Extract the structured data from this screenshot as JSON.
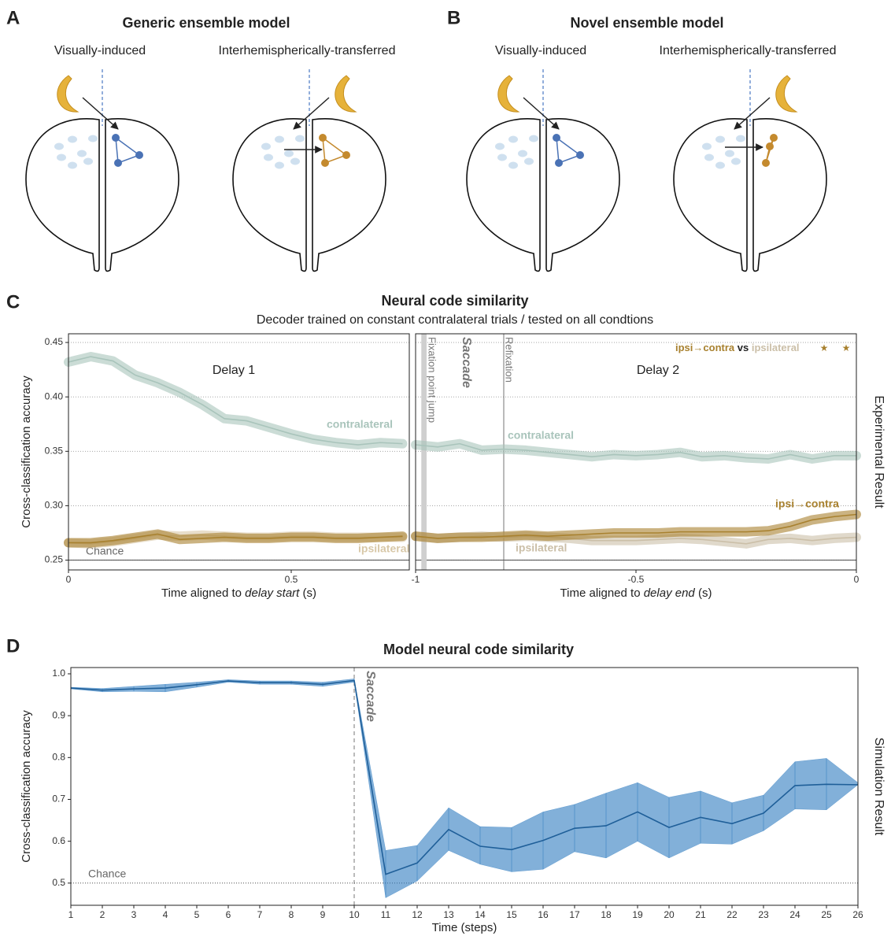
{
  "panels": [
    {
      "letter": "A",
      "title": "Generic ensemble model",
      "left": "Visually-induced",
      "right": "Interhemispherically-transferred"
    },
    {
      "letter": "B",
      "title": "Novel ensemble model",
      "left": "Visually-induced",
      "right": "Interhemispherically-transferred"
    }
  ],
  "chart_data": [
    {
      "type": "line",
      "letter": "C",
      "title": "Neural code similarity",
      "subtitle": "Decoder trained on constant contralateral trials / tested on all condtions",
      "ylabel": "Cross-classification accuracy",
      "side_label": "Experimental Result",
      "annotation": "Delay 1",
      "xlabel": {
        "text": "Time aligned to",
        "italic": "delay start",
        "unit": "(s)"
      },
      "x": [
        0,
        0.05,
        0.1,
        0.15,
        0.2,
        0.25,
        0.3,
        0.35,
        0.4,
        0.45,
        0.5,
        0.55,
        0.6,
        0.65,
        0.7,
        0.75
      ],
      "series": [
        {
          "name": "contralateral",
          "color": "#a9c4bb",
          "values": [
            0.432,
            0.437,
            0.433,
            0.42,
            0.413,
            0.404,
            0.393,
            0.38,
            0.378,
            0.372,
            0.366,
            0.361,
            0.358,
            0.356,
            0.358,
            0.357
          ]
        },
        {
          "name": "ipsilateral",
          "color": "#d8c8a8",
          "values": [
            0.266,
            0.265,
            0.267,
            0.27,
            0.273,
            0.272,
            0.273,
            0.272,
            0.271,
            0.271,
            0.272,
            0.272,
            0.271,
            0.271,
            0.271,
            0.271
          ]
        },
        {
          "name": "ipsi→contra",
          "color": "#a8812f",
          "values": [
            0.266,
            0.266,
            0.268,
            0.271,
            0.274,
            0.269,
            0.27,
            0.271,
            0.27,
            0.27,
            0.271,
            0.271,
            0.27,
            0.27,
            0.271,
            0.272
          ]
        }
      ],
      "chance": 0.25,
      "chance_label": "Chance",
      "xlim": [
        0,
        0.765
      ],
      "xticks": [
        0,
        0.5
      ],
      "ylim": [
        0.241,
        0.458
      ],
      "yticks": [
        0.25,
        {
          "value": 0.3,
          "label": "0.30"
        },
        0.35,
        {
          "value": 0.4,
          "label": "0.40"
        },
        0.45
      ],
      "grid": true
    },
    {
      "type": "line",
      "annotation": "Delay 2",
      "xlabel": {
        "text": "Time aligned to",
        "italic": "delay end",
        "unit": "(s)"
      },
      "x": [
        -1,
        -0.95,
        -0.9,
        -0.85,
        -0.8,
        -0.75,
        -0.7,
        -0.65,
        -0.6,
        -0.55,
        -0.5,
        -0.45,
        -0.4,
        -0.35,
        -0.3,
        -0.25,
        -0.2,
        -0.15,
        -0.1,
        -0.05,
        0
      ],
      "series": [
        {
          "name": "contralateral",
          "color": "#a9c4bb",
          "values": [
            0.356,
            0.354,
            0.357,
            0.351,
            0.352,
            0.351,
            0.349,
            0.347,
            0.345,
            0.347,
            0.346,
            0.347,
            0.349,
            0.345,
            0.346,
            0.344,
            0.343,
            0.347,
            0.343,
            0.346,
            0.346
          ]
        },
        {
          "name": "ipsilateral",
          "color": "#cbbfa8",
          "values": [
            0.272,
            0.27,
            0.271,
            0.272,
            0.271,
            0.272,
            0.271,
            0.27,
            0.268,
            0.268,
            0.268,
            0.269,
            0.27,
            0.269,
            0.267,
            0.265,
            0.269,
            0.27,
            0.268,
            0.27,
            0.271
          ]
        },
        {
          "name": "ipsi→contra",
          "color": "#a8812f",
          "values": [
            0.272,
            0.27,
            0.271,
            0.271,
            0.272,
            0.273,
            0.272,
            0.273,
            0.274,
            0.275,
            0.275,
            0.275,
            0.276,
            0.276,
            0.276,
            0.276,
            0.277,
            0.281,
            0.287,
            0.29,
            0.292
          ]
        }
      ],
      "events": [
        {
          "label": "Fixation point jump",
          "x": [
            -0.987,
            -0.975
          ]
        },
        {
          "label": "Refixation",
          "x": -0.8
        }
      ],
      "saccade_label": "Saccade",
      "significance": {
        "vs": "vs",
        "stars": [
          "★",
          "★"
        ]
      },
      "chance": 0.25,
      "xlim": [
        -1,
        0
      ],
      "xticks": [
        -1,
        -0.5,
        0
      ],
      "ylim": [
        0.241,
        0.458
      ],
      "yticks": [
        0.25,
        0.3,
        0.35,
        0.4,
        0.45
      ],
      "ytick_labels": false,
      "grid": true
    },
    {
      "type": "band",
      "letter": "D",
      "title": "Model neural code similarity",
      "ylabel": "Cross-classification accuracy",
      "side_label": "Simulation Result",
      "xlabel": {
        "text": "Time (steps)"
      },
      "x": [
        1,
        2,
        3,
        4,
        5,
        6,
        7,
        8,
        9,
        10,
        11,
        12,
        13,
        14,
        15,
        16,
        17,
        18,
        19,
        20,
        21,
        22,
        23,
        24,
        25,
        26
      ],
      "series": [
        {
          "color": "#2f7bbf",
          "values": [
            0.966,
            0.961,
            0.964,
            0.966,
            0.974,
            0.983,
            0.979,
            0.979,
            0.975,
            0.984,
            0.521,
            0.548,
            0.628,
            0.588,
            0.58,
            0.602,
            0.631,
            0.637,
            0.67,
            0.633,
            0.657,
            0.642,
            0.667,
            0.733,
            0.736,
            0.735
          ],
          "lower": [
            0.964,
            0.957,
            0.958,
            0.957,
            0.968,
            0.98,
            0.975,
            0.975,
            0.97,
            0.98,
            0.465,
            0.505,
            0.578,
            0.545,
            0.527,
            0.533,
            0.575,
            0.56,
            0.6,
            0.56,
            0.595,
            0.593,
            0.625,
            0.677,
            0.675,
            0.735
          ],
          "upper": [
            0.968,
            0.965,
            0.97,
            0.975,
            0.98,
            0.986,
            0.983,
            0.983,
            0.98,
            0.988,
            0.578,
            0.59,
            0.68,
            0.635,
            0.633,
            0.67,
            0.688,
            0.715,
            0.74,
            0.705,
            0.72,
            0.692,
            0.71,
            0.79,
            0.798,
            0.74
          ]
        }
      ],
      "saccade": {
        "x": 10,
        "label": "Saccade"
      },
      "chance": 0.5,
      "chance_label": "Chance",
      "xlim": [
        1,
        26
      ],
      "xticks": [
        1,
        2,
        3,
        4,
        5,
        6,
        7,
        8,
        9,
        10,
        11,
        12,
        13,
        14,
        15,
        16,
        17,
        18,
        19,
        20,
        21,
        22,
        23,
        24,
        25,
        26
      ],
      "ylim": [
        0.447,
        1.015
      ],
      "yticks": [
        0.5,
        0.6,
        0.7,
        0.8,
        0.9,
        {
          "value": 1.0,
          "label": "1.0"
        }
      ],
      "grid": false
    }
  ]
}
